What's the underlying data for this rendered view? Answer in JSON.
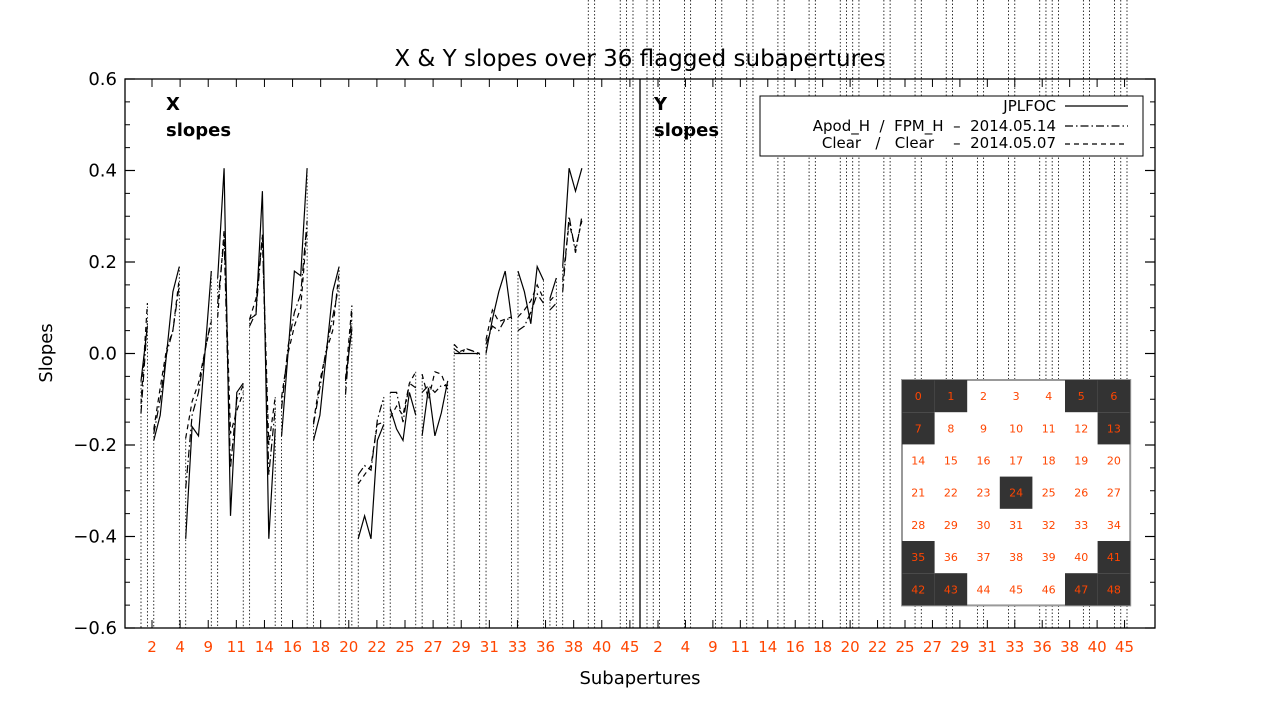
{
  "chart_data": {
    "type": "line",
    "title": "X & Y slopes over 36 flagged subapertures",
    "xlabel": "Subapertures",
    "ylabel": "Slopes",
    "ylim": [
      -0.6,
      0.6
    ],
    "yticks": [
      -0.6,
      -0.4,
      -0.2,
      0.0,
      0.2,
      0.4,
      0.6
    ],
    "ytick_labels": [
      "−0.6",
      "−0.4",
      "−0.2",
      "0.0",
      "0.2",
      "0.4",
      "0.6"
    ],
    "panel_labels": [
      {
        "line1": "X",
        "line2": "slopes"
      },
      {
        "line1": "Y",
        "line2": "slopes"
      }
    ],
    "xtick_labels": [
      "2",
      "4",
      "9",
      "11",
      "14",
      "16",
      "18",
      "20",
      "22",
      "25",
      "27",
      "29",
      "31",
      "33",
      "36",
      "38",
      "40",
      "45",
      "2",
      "4",
      "9",
      "11",
      "14",
      "16",
      "18",
      "20",
      "22",
      "25",
      "27",
      "29",
      "31",
      "33",
      "36",
      "38",
      "40",
      "45"
    ],
    "tick_color": "#ff4500",
    "groups": [
      2,
      5,
      5,
      5,
      5,
      5,
      5,
      2,
      5,
      5,
      5,
      5,
      5,
      5,
      2,
      5,
      5,
      2
    ],
    "legend": [
      {
        "label": "JPLFOC",
        "style": "solid"
      },
      {
        "label": "Apod_H  /  FPM_H  –  2014.05.14",
        "style": "dashdot"
      },
      {
        "label": "Clear   /   Clear    –  2014.05.07",
        "style": "dashed"
      }
    ],
    "series": [
      {
        "name": "JPLFOC",
        "style": "solid",
        "values": [
          -0.06,
          0.06,
          -0.19,
          -0.135,
          0.0,
          0.135,
          0.19,
          -0.405,
          -0.16,
          -0.18,
          0.0,
          0.18,
          0.165,
          0.405,
          -0.355,
          -0.085,
          -0.065,
          0.075,
          0.085,
          0.355,
          -0.405,
          -0.165,
          -0.18,
          0.0,
          0.18,
          0.17,
          0.405,
          -0.19,
          -0.135,
          0.0,
          0.135,
          0.19,
          -0.06,
          0.055,
          -0.405,
          -0.355,
          -0.405,
          -0.19,
          -0.155,
          -0.12,
          -0.165,
          -0.19,
          -0.085,
          -0.135,
          -0.18,
          -0.075,
          -0.18,
          -0.13,
          -0.06,
          0.0,
          0.0,
          0.0,
          0.0,
          0.0,
          0.0,
          0.075,
          0.135,
          0.18,
          0.075,
          0.18,
          0.135,
          0.065,
          0.19,
          0.16,
          0.12,
          0.165,
          0.19,
          0.405,
          0.355,
          0.405
        ]
      },
      {
        "name": "Apod_H / FPM_H – 2014.05.14",
        "style": "dashdot",
        "values": [
          -0.13,
          0.07,
          -0.175,
          -0.1,
          0.0,
          0.05,
          0.15,
          -0.295,
          -0.135,
          -0.085,
          0.005,
          0.075,
          0.11,
          0.25,
          -0.25,
          -0.1,
          -0.07,
          0.06,
          0.09,
          0.26,
          -0.265,
          -0.12,
          -0.12,
          0.015,
          0.09,
          0.13,
          0.29,
          -0.155,
          -0.075,
          0.01,
          0.08,
          0.15,
          -0.09,
          0.09,
          -0.265,
          -0.245,
          -0.255,
          -0.145,
          -0.095,
          -0.085,
          -0.085,
          -0.15,
          -0.065,
          -0.075,
          -0.085,
          -0.07,
          -0.085,
          -0.07,
          -0.07,
          0.01,
          0.0,
          0.01,
          0.005,
          -0.005,
          0.02,
          0.06,
          0.05,
          0.075,
          0.075,
          0.05,
          0.06,
          0.09,
          0.13,
          0.11,
          0.095,
          0.11,
          0.135,
          0.3,
          0.22,
          0.3
        ]
      },
      {
        "name": "Clear / Clear – 2014.05.07",
        "style": "dashed",
        "values": [
          -0.11,
          0.11,
          -0.165,
          -0.075,
          0.01,
          0.05,
          0.165,
          -0.185,
          -0.105,
          -0.065,
          0.005,
          0.07,
          0.08,
          0.27,
          -0.175,
          -0.125,
          -0.085,
          0.075,
          0.12,
          0.255,
          -0.2,
          -0.095,
          -0.095,
          0.0,
          0.06,
          0.1,
          0.275,
          -0.15,
          -0.06,
          0.005,
          0.05,
          0.18,
          -0.055,
          0.105,
          -0.285,
          -0.265,
          -0.245,
          -0.155,
          -0.15,
          -0.14,
          -0.115,
          -0.135,
          -0.065,
          -0.04,
          -0.045,
          -0.1,
          -0.04,
          -0.045,
          -0.08,
          0.02,
          0.005,
          0.01,
          0.005,
          0.0,
          0.03,
          0.095,
          0.07,
          0.075,
          0.08,
          0.08,
          0.095,
          0.115,
          0.15,
          0.12,
          0.115,
          0.13,
          0.16,
          0.285,
          0.23,
          0.29
        ]
      }
    ]
  },
  "inset_grid": {
    "rows": [
      [
        "0",
        "1",
        "2",
        "3",
        "4",
        "5",
        "6"
      ],
      [
        "7",
        "8",
        "9",
        "10",
        "11",
        "12",
        "13"
      ],
      [
        "14",
        "15",
        "16",
        "17",
        "18",
        "19",
        "20"
      ],
      [
        "21",
        "22",
        "23",
        "24",
        "25",
        "26",
        "27"
      ],
      [
        "28",
        "29",
        "30",
        "31",
        "32",
        "33",
        "34"
      ],
      [
        "35",
        "36",
        "37",
        "38",
        "39",
        "40",
        "41"
      ],
      [
        "42",
        "43",
        "44",
        "45",
        "46",
        "47",
        "48"
      ]
    ],
    "flagged": [
      "0",
      "1",
      "5",
      "6",
      "7",
      "13",
      "24",
      "35",
      "41",
      "42",
      "43",
      "47",
      "48"
    ],
    "flagged_fill": "#333333",
    "text_color": "#ff4500",
    "border_color": "#999999"
  },
  "colors": {
    "axis": "#000000",
    "line": "#000000",
    "tick_label": "#ff4500"
  }
}
